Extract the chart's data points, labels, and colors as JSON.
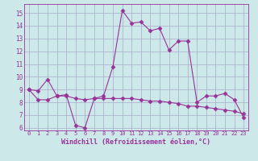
{
  "bg_color": "#cce8e8",
  "grid_color": "#aaaacc",
  "line_color": "#993399",
  "marker_color": "#993399",
  "xlabel": "Windchill (Refroidissement éolien,°C)",
  "xlim": [
    -0.5,
    23.5
  ],
  "ylim": [
    5.8,
    15.7
  ],
  "yticks": [
    6,
    7,
    8,
    9,
    10,
    11,
    12,
    13,
    14,
    15
  ],
  "xticks": [
    0,
    1,
    2,
    3,
    4,
    5,
    6,
    7,
    8,
    9,
    10,
    11,
    12,
    13,
    14,
    15,
    16,
    17,
    18,
    19,
    20,
    21,
    22,
    23
  ],
  "curve1_x": [
    0,
    1,
    2,
    3,
    4,
    5,
    6,
    7,
    8,
    9,
    10,
    11,
    12,
    13,
    14,
    15,
    16,
    17,
    18,
    19,
    20,
    21,
    22,
    23
  ],
  "curve1_y": [
    9.0,
    8.9,
    9.8,
    8.5,
    8.6,
    6.2,
    6.0,
    8.3,
    8.5,
    10.8,
    15.2,
    14.2,
    14.3,
    13.6,
    13.8,
    12.1,
    12.8,
    12.8,
    8.0,
    8.5,
    8.5,
    8.7,
    8.2,
    6.8
  ],
  "curve2_x": [
    0,
    1,
    2,
    3,
    4,
    5,
    6,
    7,
    8,
    9,
    10,
    11,
    12,
    13,
    14,
    15,
    16,
    17,
    18,
    19,
    20,
    21,
    22,
    23
  ],
  "curve2_y": [
    9.0,
    8.2,
    8.2,
    8.5,
    8.5,
    8.3,
    8.2,
    8.3,
    8.3,
    8.3,
    8.3,
    8.3,
    8.2,
    8.1,
    8.1,
    8.0,
    7.9,
    7.7,
    7.7,
    7.6,
    7.5,
    7.4,
    7.3,
    7.1
  ],
  "figsize": [
    3.2,
    2.0
  ],
  "dpi": 100
}
